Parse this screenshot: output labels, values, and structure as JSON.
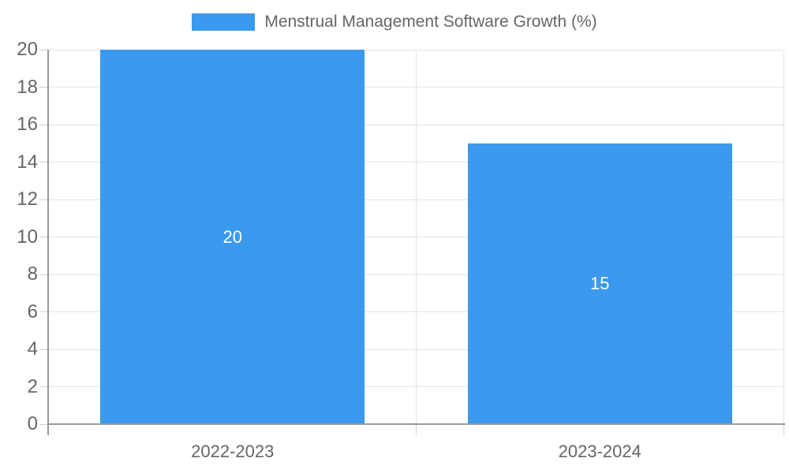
{
  "chart_data": {
    "type": "bar",
    "categories": [
      "2022-2023",
      "2023-2024"
    ],
    "values": [
      20,
      15
    ],
    "title": "Menstrual Management Software Growth (%)",
    "xlabel": "",
    "ylabel": "",
    "ylim": [
      0,
      20
    ],
    "yticks": [
      0,
      2,
      4,
      6,
      8,
      10,
      12,
      14,
      16,
      18,
      20
    ],
    "legend": {
      "label": "Menstrual Management Software Growth (%)",
      "position": "top"
    },
    "grid": true,
    "bar_color": "#3B99EE",
    "value_label_color": "#FFFFFF",
    "tick_label_color": "#666666",
    "axis_color": "#999999",
    "grid_color": "#E3E3E3",
    "tick_mark_color": "#CFCFCF",
    "bar_width_frac": 0.72
  }
}
